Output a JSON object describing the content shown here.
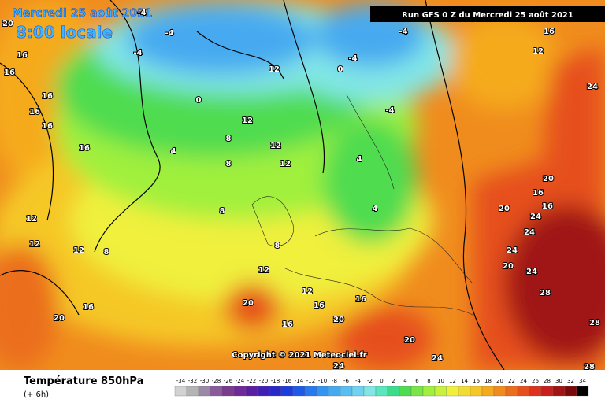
{
  "header": {
    "date": "Mercredi 25 août 2021",
    "time": "8:00 locale",
    "run": "Run GFS 0 Z du Mercredi 25 août 2021"
  },
  "copyright": "Copyright © 2021 Meteociel.fr",
  "legend": {
    "title": "Température 850hPa",
    "subtitle": "(+ 6h)",
    "scale": [
      -34,
      -32,
      -30,
      -28,
      -26,
      -24,
      -22,
      -20,
      -18,
      -16,
      -14,
      -12,
      -10,
      -8,
      -6,
      -4,
      -2,
      0,
      2,
      4,
      6,
      8,
      10,
      12,
      14,
      16,
      18,
      20,
      22,
      24,
      26,
      28,
      30,
      32,
      34
    ],
    "colors": [
      "#d2d2d2",
      "#b4b4b4",
      "#9a8aa8",
      "#8c5a9c",
      "#7a3c8c",
      "#6e2a96",
      "#5a1ea0",
      "#4020b4",
      "#2828c8",
      "#1c3cdc",
      "#1e5ae6",
      "#2878f0",
      "#3296f0",
      "#46aaf0",
      "#5abef0",
      "#6ed2f0",
      "#82e6e6",
      "#5ae6be",
      "#3cdc8c",
      "#50dc50",
      "#78e646",
      "#a0f03c",
      "#c8f03c",
      "#f0f03c",
      "#f0dc32",
      "#f5c828",
      "#f5aa1e",
      "#f08c1e",
      "#eb6e1e",
      "#e6501e",
      "#dc321e",
      "#c81e1e",
      "#a01414",
      "#780a0a",
      "#000000"
    ]
  },
  "isotherm_labels": [
    "20",
    "16",
    "16",
    "16",
    "16",
    "16",
    "16",
    "12",
    "12",
    "12",
    "8",
    "4",
    "8",
    "8",
    "8",
    "12",
    "12",
    "12",
    "8",
    "12",
    "12",
    "16",
    "16",
    "16",
    "20",
    "16",
    "20",
    "20",
    "24",
    "4",
    "4",
    "0",
    "-4",
    "-4",
    "-4",
    "12",
    "-4",
    "-4",
    "-4",
    "0",
    "20",
    "16",
    "16",
    "24",
    "24",
    "24",
    "20",
    "24",
    "28",
    "28",
    "28",
    "16",
    "12",
    "20",
    "24",
    "20",
    "24"
  ]
}
